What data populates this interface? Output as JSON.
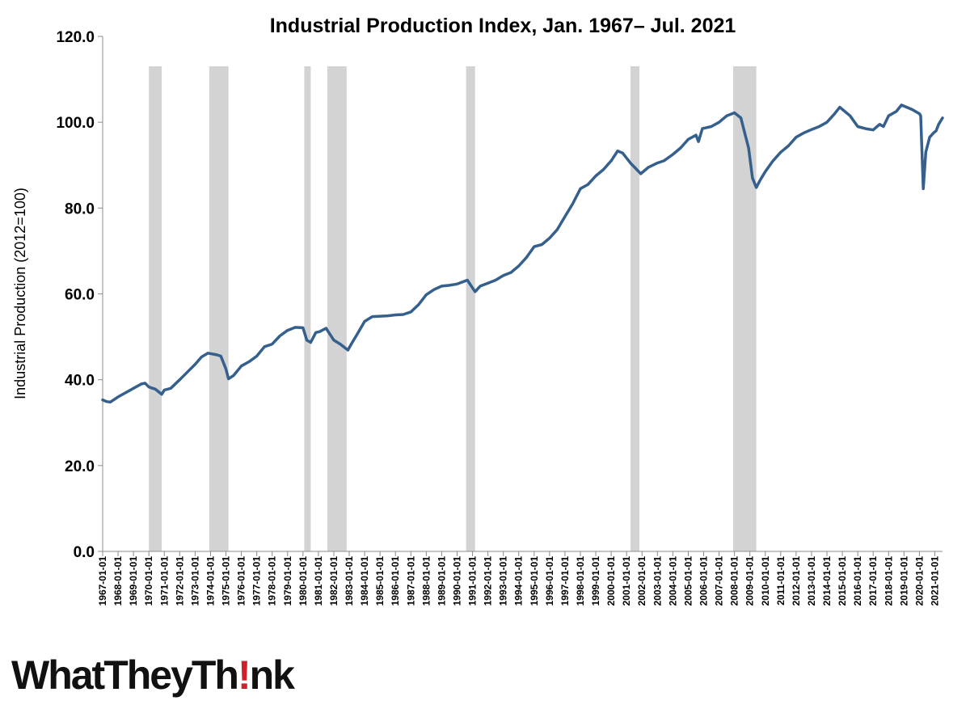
{
  "chart_data": {
    "type": "line",
    "title": "Industrial Production Index, Jan. 1967– Jul. 2021",
    "xlabel": "",
    "ylabel": "Industrial Production (2012=100)",
    "ylim": [
      0,
      120
    ],
    "yticks": [
      "0.0",
      "20.0",
      "40.0",
      "60.0",
      "80.0",
      "100.0",
      "120.0"
    ],
    "xlim": [
      "1967-01-01",
      "2021-07-01"
    ],
    "xticks": [
      "1967-01-01",
      "1968-01-01",
      "1969-01-01",
      "1970-01-01",
      "1971-01-01",
      "1972-01-01",
      "1973-01-01",
      "1974-01-01",
      "1975-01-01",
      "1976-01-01",
      "1977-01-01",
      "1978-01-01",
      "1979-01-01",
      "1980-01-01",
      "1981-01-01",
      "1982-01-01",
      "1983-01-01",
      "1984-01-01",
      "1985-01-01",
      "1986-01-01",
      "1987-01-01",
      "1988-01-01",
      "1989-01-01",
      "1990-01-01",
      "1991-01-01",
      "1992-01-01",
      "1993-01-01",
      "1994-01-01",
      "1995-01-01",
      "1996-01-01",
      "1997-01-01",
      "1998-01-01",
      "1999-01-01",
      "2000-01-01",
      "2001-01-01",
      "2002-01-01",
      "2003-01-01",
      "2004-01-01",
      "2005-01-01",
      "2006-01-01",
      "2007-01-01",
      "2008-01-01",
      "2009-01-01",
      "2010-01-01",
      "2011-01-01",
      "2012-01-01",
      "2013-01-01",
      "2014-01-01",
      "2015-01-01",
      "2016-01-01",
      "2017-01-01",
      "2018-01-01",
      "2019-01-01",
      "2020-01-01",
      "2021-01-01"
    ],
    "grid": false,
    "line_color": "#355f8d",
    "recession_color": "#d3d3d3",
    "recessions": [
      [
        "1970-01-01",
        "1970-11-01"
      ],
      [
        "1973-12-01",
        "1975-03-01"
      ],
      [
        "1980-02-01",
        "1980-07-01"
      ],
      [
        "1981-08-01",
        "1982-11-01"
      ],
      [
        "1990-08-01",
        "1991-03-01"
      ],
      [
        "2001-04-01",
        "2001-11-01"
      ],
      [
        "2007-12-01",
        "2009-06-01"
      ]
    ],
    "series": [
      {
        "x": [
          "1967-01-01",
          "1967-04-01",
          "1967-07-01",
          "1968-01-01",
          "1968-07-01",
          "1969-01-01",
          "1969-07-01",
          "1969-10-01",
          "1970-01-01",
          "1970-06-01",
          "1970-11-01",
          "1971-01-01",
          "1971-06-01",
          "1972-01-01",
          "1972-06-01",
          "1973-01-01",
          "1973-06-01",
          "1973-11-01",
          "1974-06-01",
          "1974-09-01",
          "1975-01-01",
          "1975-03-01",
          "1975-07-01",
          "1976-01-01",
          "1976-07-01",
          "1977-01-01",
          "1977-07-01",
          "1978-01-01",
          "1978-07-01",
          "1979-01-01",
          "1979-07-01",
          "1980-01-01",
          "1980-04-01",
          "1980-07-01",
          "1980-11-01",
          "1981-02-01",
          "1981-07-01",
          "1981-10-01",
          "1982-01-01",
          "1982-06-01",
          "1982-12-01",
          "1983-03-01",
          "1983-07-01",
          "1984-01-01",
          "1984-07-01",
          "1985-01-01",
          "1985-07-01",
          "1986-01-01",
          "1986-07-01",
          "1987-01-01",
          "1987-07-01",
          "1988-01-01",
          "1988-07-01",
          "1989-01-01",
          "1989-07-01",
          "1990-01-01",
          "1990-09-01",
          "1991-03-01",
          "1991-07-01",
          "1992-01-01",
          "1992-07-01",
          "1993-01-01",
          "1993-07-01",
          "1994-01-01",
          "1994-07-01",
          "1995-01-01",
          "1995-07-01",
          "1996-01-01",
          "1996-07-01",
          "1997-01-01",
          "1997-07-01",
          "1998-01-01",
          "1998-07-01",
          "1999-01-01",
          "1999-07-01",
          "2000-01-01",
          "2000-06-01",
          "2000-10-01",
          "2001-04-01",
          "2001-12-01",
          "2002-06-01",
          "2003-01-01",
          "2003-06-01",
          "2004-01-01",
          "2004-07-01",
          "2005-01-01",
          "2005-07-01",
          "2005-09-01",
          "2005-12-01",
          "2006-07-01",
          "2007-01-01",
          "2007-07-01",
          "2008-01-01",
          "2008-06-01",
          "2008-09-01",
          "2008-12-01",
          "2009-03-01",
          "2009-06-01",
          "2009-09-01",
          "2010-01-01",
          "2010-07-01",
          "2011-01-01",
          "2011-07-01",
          "2012-01-01",
          "2012-07-01",
          "2013-01-01",
          "2013-07-01",
          "2014-01-01",
          "2014-07-01",
          "2014-11-01",
          "2015-07-01",
          "2016-01-01",
          "2016-07-01",
          "2017-01-01",
          "2017-06-01",
          "2017-09-01",
          "2018-01-01",
          "2018-07-01",
          "2018-11-01",
          "2019-07-01",
          "2020-01-01",
          "2020-02-01",
          "2020-04-01",
          "2020-06-01",
          "2020-09-01",
          "2020-12-01",
          "2021-02-01",
          "2021-04-01",
          "2021-07-01"
        ],
        "y": [
          35.3,
          34.9,
          34.8,
          36.0,
          37.0,
          38.0,
          39.0,
          39.2,
          38.3,
          37.8,
          36.6,
          37.6,
          38.0,
          40.0,
          41.5,
          43.6,
          45.3,
          46.2,
          45.8,
          45.5,
          42.5,
          40.2,
          41.0,
          43.2,
          44.2,
          45.5,
          47.7,
          48.3,
          50.2,
          51.5,
          52.2,
          52.1,
          49.2,
          48.7,
          51.0,
          51.2,
          52.0,
          50.6,
          49.2,
          48.3,
          46.9,
          48.5,
          50.5,
          53.6,
          54.7,
          54.8,
          54.9,
          55.1,
          55.2,
          55.8,
          57.5,
          59.8,
          61.0,
          61.8,
          62.0,
          62.3,
          63.2,
          60.5,
          61.8,
          62.5,
          63.2,
          64.3,
          65.0,
          66.5,
          68.5,
          71.0,
          71.5,
          73.0,
          75.0,
          78.0,
          81.0,
          84.5,
          85.5,
          87.5,
          89.0,
          91.0,
          93.3,
          92.8,
          90.5,
          88.0,
          89.5,
          90.5,
          91.0,
          92.5,
          94.0,
          96.0,
          97.0,
          95.5,
          98.5,
          99.0,
          100.0,
          101.5,
          102.2,
          101.0,
          97.5,
          94.0,
          87.0,
          84.8,
          86.5,
          88.5,
          91.0,
          93.0,
          94.5,
          96.5,
          97.5,
          98.3,
          99.0,
          100.0,
          102.0,
          103.5,
          101.5,
          99.0,
          98.5,
          98.2,
          99.5,
          99.0,
          101.5,
          102.5,
          104.0,
          103.0,
          102.0,
          101.5,
          84.5,
          93.0,
          96.5,
          97.5,
          98.0,
          99.5,
          101.0
        ]
      }
    ]
  },
  "logo": {
    "prefix": "WhatTheyTh",
    "mark": "!",
    "suffix": "nk"
  }
}
